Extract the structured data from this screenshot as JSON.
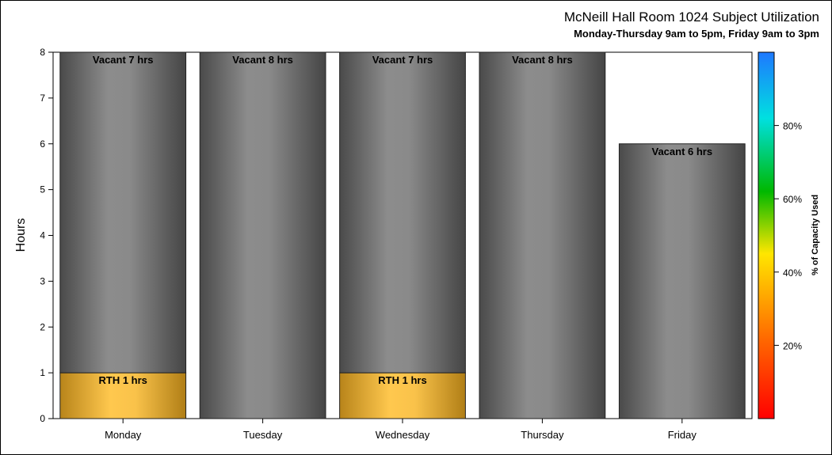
{
  "chart_data": {
    "type": "bar",
    "stacked": true,
    "title": "McNeill Hall Room 1024 Subject Utilization",
    "subtitle": "Monday-Thursday 9am to 5pm, Friday 9am to 3pm",
    "ylabel": "Hours",
    "xlabel": "",
    "ylim": [
      0,
      8
    ],
    "yticks": [
      "0",
      "1",
      "2",
      "3",
      "4",
      "5",
      "6",
      "7",
      "8"
    ],
    "categories": [
      "Monday",
      "Tuesday",
      "Wednesday",
      "Thursday",
      "Friday"
    ],
    "series": [
      {
        "name": "RTH",
        "color": "#F2B43C",
        "values": [
          1,
          0,
          1,
          0,
          0
        ],
        "labels": [
          "RTH 1 hrs",
          "",
          "RTH 1 hrs",
          "",
          ""
        ]
      },
      {
        "name": "Vacant",
        "color": "#7A7A7A",
        "values": [
          7,
          8,
          7,
          8,
          6
        ],
        "labels": [
          "Vacant 7 hrs",
          "Vacant 8 hrs",
          "Vacant 7 hrs",
          "Vacant 8 hrs",
          "Vacant 6 hrs"
        ]
      }
    ],
    "colorbar": {
      "label": "% of Capacity Used",
      "ticks": [
        "20%",
        "40%",
        "60%",
        "80%"
      ],
      "tick_values": [
        20,
        40,
        60,
        80
      ],
      "range": [
        0,
        100
      ],
      "colors": [
        "#FF0000",
        "#FF7A00",
        "#FFE000",
        "#00C000",
        "#00E0E0",
        "#1E7FFF"
      ]
    },
    "grid": false
  }
}
